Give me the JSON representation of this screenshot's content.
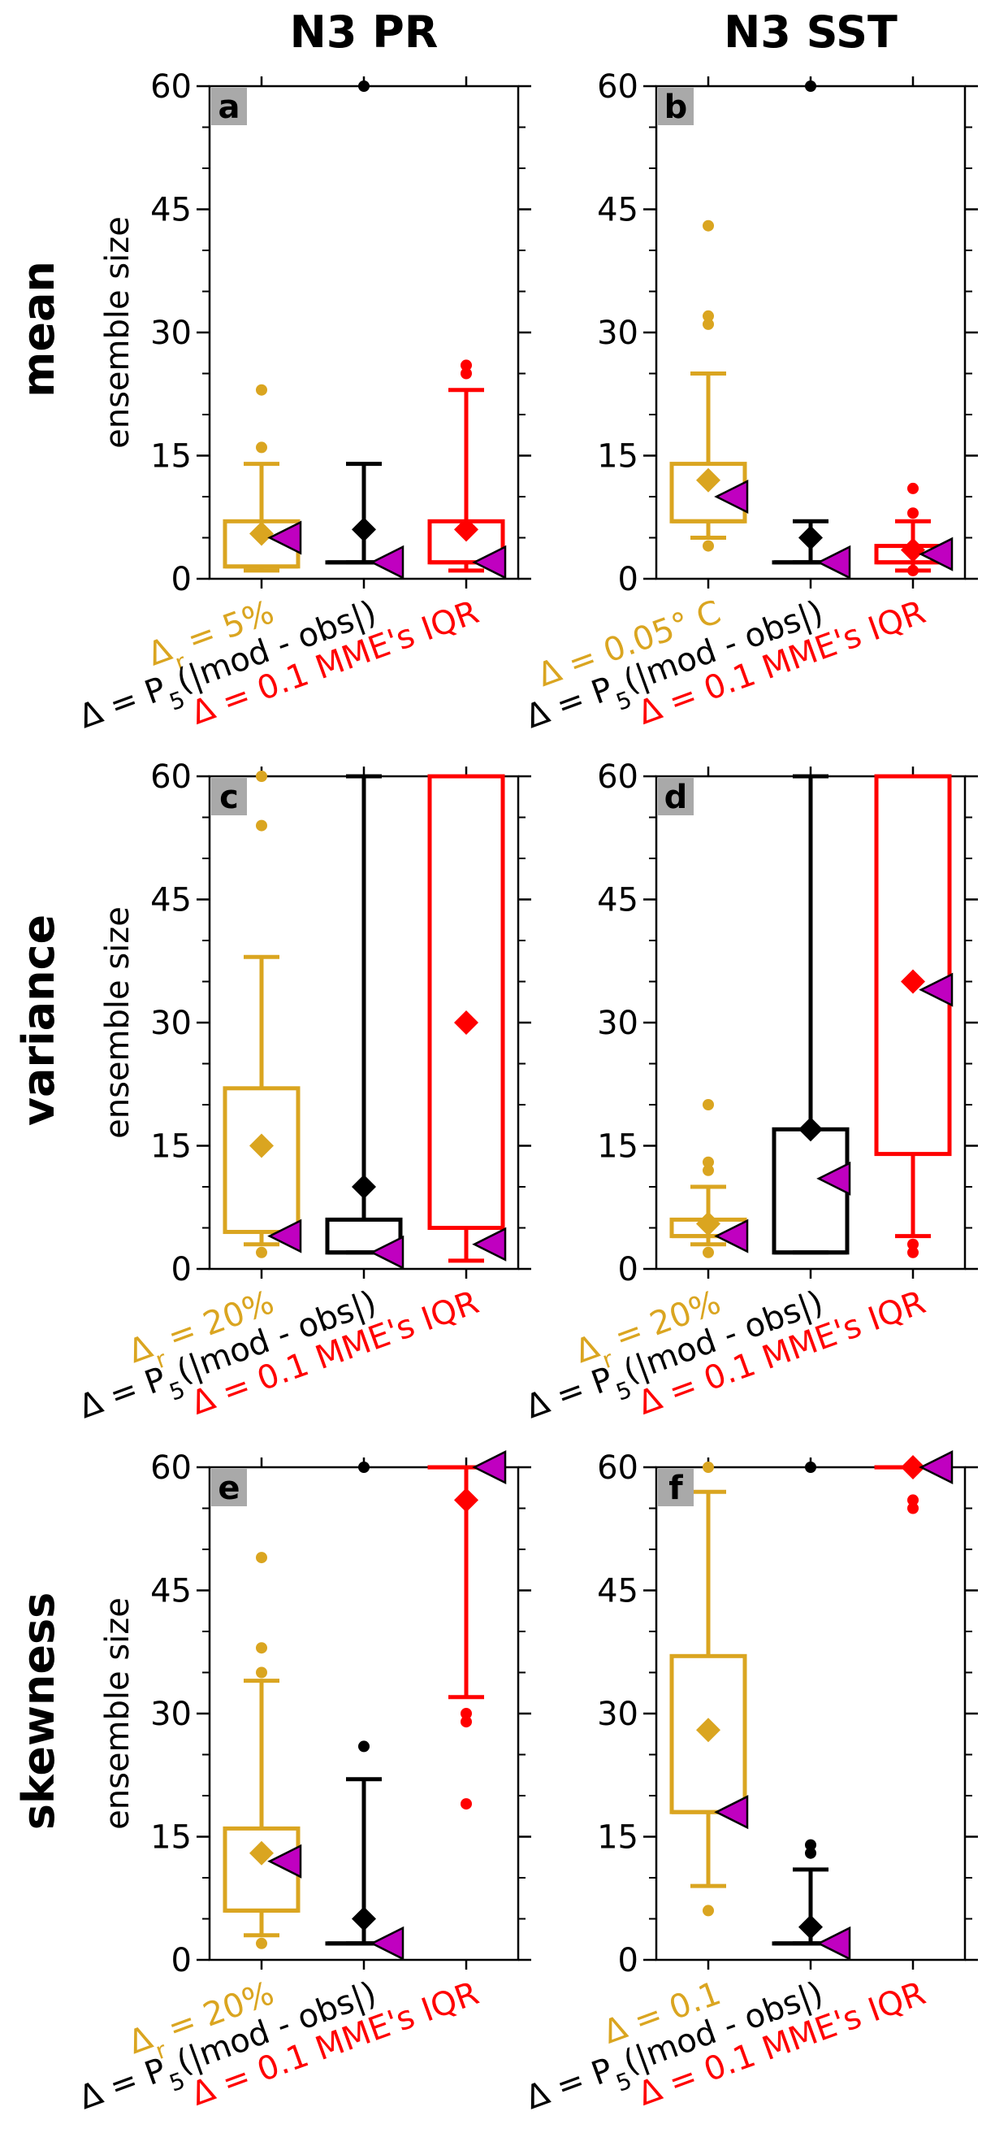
{
  "column_titles": [
    "N3 PR",
    "N3 SST"
  ],
  "row_titles": [
    "mean",
    "variance",
    "skewness"
  ],
  "ylabel": "ensemble size",
  "colors": {
    "gold": "#DAA520",
    "black": "#000000",
    "red": "#FF0000",
    "magenta": "#C000C0",
    "label_bg": "#A9A9A9"
  },
  "chart_data": [
    {
      "panel": "a",
      "type": "box",
      "row": "mean",
      "column": "N3 PR",
      "ylim": [
        0,
        60
      ],
      "yticks": [
        0,
        15,
        30,
        45,
        60
      ],
      "ylabel": "ensemble size",
      "xlabels": [
        {
          "text": "Δr = 5%",
          "color": "gold"
        },
        {
          "text": "Δ = P5(|mod - obs|)",
          "color": "black"
        },
        {
          "text": "Δ = 0.1 MME's IQR",
          "color": "red"
        }
      ],
      "boxes": [
        {
          "color": "gold",
          "q1": 1.5,
          "q3": 7,
          "median": 1.5,
          "whisker_low": 1,
          "whisker_high": 14,
          "mean": 5.5,
          "triangle": 5,
          "outliers": [
            16,
            23
          ]
        },
        {
          "color": "black",
          "q1": 2,
          "q3": 2,
          "median": 2,
          "whisker_low": 2,
          "whisker_high": 14,
          "mean": 6,
          "triangle": 2,
          "outliers": [
            60
          ]
        },
        {
          "color": "red",
          "q1": 2,
          "q3": 7,
          "median": 2,
          "whisker_low": 1,
          "whisker_high": 23,
          "mean": 6,
          "triangle": 2,
          "outliers": [
            25,
            26
          ]
        }
      ]
    },
    {
      "panel": "b",
      "type": "box",
      "row": "mean",
      "column": "N3 SST",
      "ylim": [
        0,
        60
      ],
      "yticks": [
        0,
        15,
        30,
        45,
        60
      ],
      "ylabel": "",
      "xlabels": [
        {
          "text": "Δ = 0.05° C",
          "color": "gold"
        },
        {
          "text": "Δ = P5(|mod - obs|)",
          "color": "black"
        },
        {
          "text": "Δ = 0.1 MME's IQR",
          "color": "red"
        }
      ],
      "boxes": [
        {
          "color": "gold",
          "q1": 7,
          "q3": 14,
          "median": 7,
          "whisker_low": 5,
          "whisker_high": 25,
          "mean": 12,
          "triangle": 10,
          "outliers": [
            4,
            31,
            32,
            43
          ]
        },
        {
          "color": "black",
          "q1": 2,
          "q3": 2,
          "median": 2,
          "whisker_low": 2,
          "whisker_high": 7,
          "mean": 5,
          "triangle": 2,
          "outliers": [
            60
          ]
        },
        {
          "color": "red",
          "q1": 2,
          "q3": 4,
          "median": 2,
          "whisker_low": 1,
          "whisker_high": 7,
          "mean": 3.5,
          "triangle": 3,
          "outliers": [
            1,
            8,
            11
          ]
        }
      ]
    },
    {
      "panel": "c",
      "type": "box",
      "row": "variance",
      "column": "N3 PR",
      "ylim": [
        0,
        60
      ],
      "yticks": [
        0,
        15,
        30,
        45,
        60
      ],
      "ylabel": "ensemble size",
      "xlabels": [
        {
          "text": "Δr = 20%",
          "color": "gold"
        },
        {
          "text": "Δ = P5(|mod - obs|)",
          "color": "black"
        },
        {
          "text": "Δ = 0.1 MME's IQR",
          "color": "red"
        }
      ],
      "boxes": [
        {
          "color": "gold",
          "q1": 4.5,
          "q3": 22,
          "median": 4.5,
          "whisker_low": 3,
          "whisker_high": 38,
          "mean": 15,
          "triangle": 4,
          "outliers": [
            2,
            54,
            60
          ]
        },
        {
          "color": "black",
          "q1": 2,
          "q3": 6,
          "median": 2,
          "whisker_low": 2,
          "whisker_high": 60,
          "mean": 10,
          "triangle": 2,
          "outliers": []
        },
        {
          "color": "red",
          "q1": 5,
          "q3": 60,
          "median": 60,
          "whisker_low": 1,
          "whisker_high": 60,
          "mean": 30,
          "triangle": 3,
          "outliers": []
        }
      ]
    },
    {
      "panel": "d",
      "type": "box",
      "row": "variance",
      "column": "N3 SST",
      "ylim": [
        0,
        60
      ],
      "yticks": [
        0,
        15,
        30,
        45,
        60
      ],
      "ylabel": "",
      "xlabels": [
        {
          "text": "Δr = 20%",
          "color": "gold"
        },
        {
          "text": "Δ = P5(|mod - obs|)",
          "color": "black"
        },
        {
          "text": "Δ = 0.1 MME's IQR",
          "color": "red"
        }
      ],
      "boxes": [
        {
          "color": "gold",
          "q1": 4,
          "q3": 6,
          "median": 4,
          "whisker_low": 3,
          "whisker_high": 10,
          "mean": 5.5,
          "triangle": 4,
          "outliers": [
            2,
            12,
            13,
            20
          ]
        },
        {
          "color": "black",
          "q1": 2,
          "q3": 17,
          "median": 2,
          "whisker_low": 2,
          "whisker_high": 60,
          "mean": 17,
          "triangle": 11,
          "outliers": []
        },
        {
          "color": "red",
          "q1": 14,
          "q3": 60,
          "median": 60,
          "whisker_low": 4,
          "whisker_high": 60,
          "mean": 35,
          "triangle": 34,
          "outliers": [
            2,
            3
          ]
        }
      ]
    },
    {
      "panel": "e",
      "type": "box",
      "row": "skewness",
      "column": "N3 PR",
      "ylim": [
        0,
        60
      ],
      "yticks": [
        0,
        15,
        30,
        45,
        60
      ],
      "ylabel": "ensemble size",
      "xlabels": [
        {
          "text": "Δr = 20%",
          "color": "gold"
        },
        {
          "text": "Δ = P5(|mod - obs|)",
          "color": "black"
        },
        {
          "text": "Δ = 0.1 MME's IQR",
          "color": "red"
        }
      ],
      "boxes": [
        {
          "color": "gold",
          "q1": 6,
          "q3": 16,
          "median": 6,
          "whisker_low": 3,
          "whisker_high": 34,
          "mean": 13,
          "triangle": 12,
          "outliers": [
            2,
            35,
            38,
            49
          ]
        },
        {
          "color": "black",
          "q1": 2,
          "q3": 2,
          "median": 2,
          "whisker_low": 2,
          "whisker_high": 22,
          "mean": 5,
          "triangle": 2,
          "outliers": [
            26,
            60
          ]
        },
        {
          "color": "red",
          "q1": 60,
          "q3": 60,
          "median": 60,
          "whisker_low": 32,
          "whisker_high": 60,
          "mean": 56,
          "triangle": 60,
          "outliers": [
            19,
            29,
            30
          ]
        }
      ]
    },
    {
      "panel": "f",
      "type": "box",
      "row": "skewness",
      "column": "N3 SST",
      "ylim": [
        0,
        60
      ],
      "yticks": [
        0,
        15,
        30,
        45,
        60
      ],
      "ylabel": "",
      "xlabels": [
        {
          "text": "Δ = 0.1",
          "color": "gold"
        },
        {
          "text": "Δ = P5(|mod - obs|)",
          "color": "black"
        },
        {
          "text": "Δ = 0.1 MME's IQR",
          "color": "red"
        }
      ],
      "boxes": [
        {
          "color": "gold",
          "q1": 18,
          "q3": 37,
          "median": 18,
          "whisker_low": 9,
          "whisker_high": 57,
          "mean": 28,
          "triangle": 18,
          "outliers": [
            6,
            60
          ]
        },
        {
          "color": "black",
          "q1": 2,
          "q3": 2,
          "median": 2,
          "whisker_low": 2,
          "whisker_high": 11,
          "mean": 4,
          "triangle": 2,
          "outliers": [
            13,
            14,
            60
          ]
        },
        {
          "color": "red",
          "q1": 60,
          "q3": 60,
          "median": 60,
          "whisker_low": 60,
          "whisker_high": 60,
          "mean": 60,
          "triangle": 60,
          "outliers": [
            55,
            56
          ]
        }
      ]
    }
  ]
}
